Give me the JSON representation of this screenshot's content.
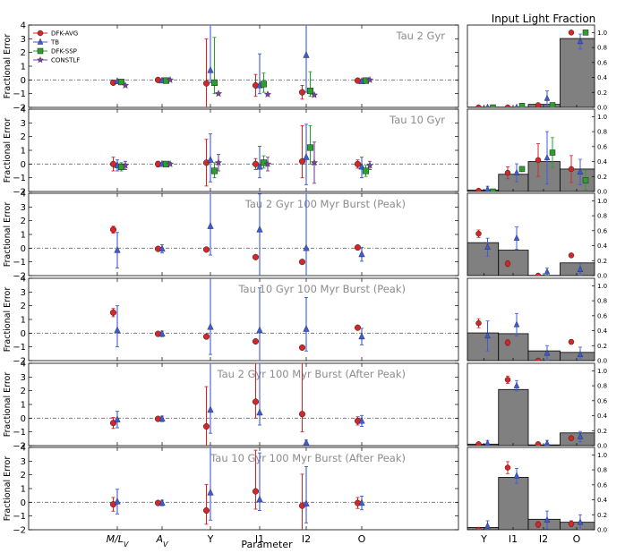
{
  "figure": {
    "right_title": "Input Light Fraction",
    "xlabel": "Parameter",
    "ylabel": "Fractional Error",
    "left_ticks": [
      "M/L_V",
      "A_V",
      "Y",
      "I1",
      "I2",
      "O"
    ],
    "right_ticks": [
      "Y",
      "I1",
      "I2",
      "O"
    ],
    "left_yticks": [
      "4",
      "3",
      "2",
      "1",
      "0",
      "−1",
      "−2"
    ],
    "right_yticks": [
      "1.0",
      "0.8",
      "0.6",
      "0.4",
      "0.2",
      "0.0"
    ],
    "legend": [
      {
        "label": "DFK-AVG",
        "color": "#d62728",
        "marker": "circle"
      },
      {
        "label": "TB",
        "color": "#3b5bdb",
        "marker": "triangle-up"
      },
      {
        "label": "DFK-SSP",
        "color": "#2ca02c",
        "marker": "square"
      },
      {
        "label": "CONSTLF",
        "color": "#7a3fa0",
        "marker": "star"
      }
    ]
  },
  "chart_data": [
    {
      "type": "errorbar",
      "title": "Tau 2 Gyr",
      "categories": [
        "M/L_V",
        "A_V",
        "Y",
        "I1",
        "I2",
        "O"
      ],
      "ylim": [
        -2,
        4
      ],
      "series": [
        {
          "name": "DFK-AVG",
          "values": [
            -0.2,
            0.0,
            -0.25,
            -0.4,
            -0.9,
            -0.05
          ],
          "err_lo": [
            0.05,
            0.05,
            3.25,
            0.8,
            0.5,
            0.05
          ],
          "err_hi": [
            0.05,
            0.05,
            3.25,
            0.8,
            0.5,
            0.05
          ]
        },
        {
          "name": "TB",
          "values": [
            -0.1,
            -0.05,
            0.7,
            -0.4,
            1.8,
            -0.1
          ],
          "err_lo": [
            0.05,
            0.05,
            0.9,
            0.6,
            2.7,
            0.05
          ],
          "err_hi": [
            0.05,
            0.05,
            3.3,
            2.3,
            2.2,
            0.05
          ]
        },
        {
          "name": "DFK-SSP",
          "values": [
            -0.15,
            -0.05,
            -0.2,
            -0.3,
            -0.8,
            -0.05
          ],
          "err_lo": [
            0.05,
            0.05,
            0.8,
            0.6,
            0.4,
            0.05
          ],
          "err_hi": [
            0.05,
            0.05,
            3.3,
            0.8,
            1.4,
            0.05
          ]
        },
        {
          "name": "CONSTLF",
          "values": [
            -0.4,
            0.0,
            -1.0,
            -1.05,
            -1.1,
            0.0
          ],
          "err_lo": [
            0.05,
            0.05,
            0.05,
            0.05,
            0.05,
            0.05
          ],
          "err_hi": [
            0.05,
            0.05,
            0.05,
            0.05,
            0.05,
            0.05
          ]
        }
      ],
      "fraction": {
        "bars": [
          0.0,
          0.0,
          0.04,
          0.92
        ],
        "series": [
          {
            "name": "DFK-AVG",
            "values": [
              0.0,
              0.0,
              0.03,
              1.0
            ],
            "err": [
              0.005,
              0.005,
              0.01,
              0.01
            ]
          },
          {
            "name": "TB",
            "values": [
              0.0,
              0.0,
              0.12,
              0.88
            ],
            "err": [
              0.005,
              0.005,
              0.1,
              0.1
            ]
          },
          {
            "name": "DFK-SSP",
            "values": [
              0.0,
              0.02,
              0.03,
              1.0
            ],
            "err": [
              0.005,
              0.01,
              0.03,
              0.01
            ]
          }
        ]
      }
    },
    {
      "type": "errorbar",
      "title": "Tau 10 Gyr",
      "categories": [
        "M/L_V",
        "A_V",
        "Y",
        "I1",
        "I2",
        "O"
      ],
      "ylim": [
        -2,
        4
      ],
      "series": [
        {
          "name": "DFK-AVG",
          "values": [
            0.0,
            0.0,
            0.1,
            0.0,
            0.2,
            0.0
          ],
          "err_lo": [
            0.5,
            0.2,
            1.7,
            0.4,
            1.2,
            0.3
          ],
          "err_hi": [
            0.5,
            0.2,
            1.7,
            0.4,
            2.6,
            0.3
          ]
        },
        {
          "name": "TB",
          "values": [
            -0.1,
            0.0,
            0.3,
            -0.2,
            0.5,
            -0.2
          ],
          "err_lo": [
            0.4,
            0.1,
            1.6,
            0.8,
            2.0,
            0.8
          ],
          "err_hi": [
            0.4,
            0.1,
            1.9,
            1.5,
            2.4,
            0.7
          ]
        },
        {
          "name": "DFK-SSP",
          "values": [
            -0.2,
            0.0,
            -0.5,
            0.1,
            1.2,
            -0.5
          ],
          "err_lo": [
            0.3,
            0.1,
            0.5,
            0.4,
            1.2,
            0.4
          ],
          "err_hi": [
            0.3,
            0.1,
            0.6,
            0.5,
            1.6,
            0.4
          ]
        },
        {
          "name": "CONSTLF",
          "values": [
            -0.1,
            0.0,
            0.1,
            0.0,
            0.1,
            -0.1
          ],
          "err_lo": [
            0.3,
            0.1,
            0.6,
            0.5,
            1.5,
            0.3
          ],
          "err_hi": [
            0.3,
            0.1,
            0.6,
            0.5,
            1.5,
            0.3
          ]
        }
      ],
      "fraction": {
        "bars": [
          0.02,
          0.23,
          0.4,
          0.3
        ],
        "series": [
          {
            "name": "DFK-AVG",
            "values": [
              0.01,
              0.25,
              0.42,
              0.3
            ],
            "err": [
              0.01,
              0.08,
              0.22,
              0.18
            ]
          },
          {
            "name": "TB",
            "values": [
              0.03,
              0.25,
              0.45,
              0.26
            ],
            "err": [
              0.04,
              0.12,
              0.35,
              0.17
            ]
          },
          {
            "name": "DFK-SSP",
            "values": [
              0.0,
              0.3,
              0.52,
              0.15
            ],
            "err": [
              0.01,
              0.03,
              0.2,
              0.13
            ]
          }
        ]
      }
    },
    {
      "type": "errorbar",
      "title": "Tau 2 Gyr 100 Myr Burst (Peak)",
      "categories": [
        "M/L_V",
        "A_V",
        "Y",
        "I1",
        "I2",
        "O"
      ],
      "ylim": [
        -2,
        4
      ],
      "series": [
        {
          "name": "DFK-AVG",
          "values": [
            1.35,
            -0.05,
            -0.1,
            -0.65,
            -1.0,
            0.05
          ],
          "err_lo": [
            0.25,
            0.15,
            0.1,
            0.15,
            0.1,
            0.1
          ],
          "err_hi": [
            0.25,
            0.15,
            0.1,
            0.15,
            0.1,
            0.1
          ]
        },
        {
          "name": "TB",
          "values": [
            -0.15,
            -0.05,
            1.6,
            1.35,
            0.0,
            -0.45
          ],
          "err_lo": [
            1.3,
            0.3,
            2.1,
            3.4,
            2.0,
            0.5
          ],
          "err_hi": [
            1.3,
            0.3,
            2.4,
            2.6,
            4.0,
            0.5
          ]
        }
      ],
      "fraction": {
        "bars": [
          0.44,
          0.34,
          0.0,
          0.17
        ],
        "series": [
          {
            "name": "DFK-AVG",
            "values": [
              0.56,
              0.16,
              0.0,
              0.27
            ],
            "err": [
              0.05,
              0.04,
              0.005,
              0.02
            ]
          },
          {
            "name": "TB",
            "values": [
              0.38,
              0.5,
              0.05,
              0.08
            ],
            "err": [
              0.12,
              0.15,
              0.05,
              0.08
            ]
          }
        ]
      }
    },
    {
      "type": "errorbar",
      "title": "Tau 10 Gyr 100 Myr Burst (Peak)",
      "categories": [
        "M/L_V",
        "A_V",
        "Y",
        "I1",
        "I2",
        "O"
      ],
      "ylim": [
        -2,
        4
      ],
      "series": [
        {
          "name": "DFK-AVG",
          "values": [
            1.5,
            -0.05,
            -0.25,
            -0.6,
            -1.05,
            0.4
          ],
          "err_lo": [
            0.3,
            0.15,
            0.15,
            0.15,
            0.1,
            0.1
          ],
          "err_hi": [
            0.3,
            0.15,
            0.15,
            0.15,
            0.1,
            0.1
          ]
        },
        {
          "name": "TB",
          "values": [
            0.2,
            -0.05,
            0.45,
            0.2,
            0.3,
            -0.25
          ],
          "err_lo": [
            1.2,
            0.2,
            2.0,
            3.0,
            1.6,
            0.6
          ],
          "err_hi": [
            1.8,
            0.2,
            3.6,
            3.1,
            2.3,
            0.6
          ]
        }
      ],
      "fraction": {
        "bars": [
          0.37,
          0.36,
          0.13,
          0.11
        ],
        "series": [
          {
            "name": "DFK-AVG",
            "values": [
              0.5,
              0.24,
              0.0,
              0.25
            ],
            "err": [
              0.06,
              0.04,
              0.01,
              0.03
            ]
          },
          {
            "name": "TB",
            "values": [
              0.33,
              0.48,
              0.1,
              0.08
            ],
            "err": [
              0.2,
              0.15,
              0.1,
              0.1
            ]
          }
        ]
      }
    },
    {
      "type": "errorbar",
      "title": "Tau 2 Gyr 100 Myr Burst (After Peak)",
      "categories": [
        "M/L_V",
        "A_V",
        "Y",
        "I1",
        "I2",
        "O"
      ],
      "ylim": [
        -2,
        4
      ],
      "series": [
        {
          "name": "DFK-AVG",
          "values": [
            -0.35,
            -0.05,
            -0.6,
            1.2,
            0.3,
            -0.2
          ],
          "err_lo": [
            0.4,
            0.15,
            1.8,
            1.2,
            1.3,
            0.3
          ],
          "err_hi": [
            0.4,
            0.15,
            2.9,
            2.8,
            3.7,
            0.3
          ]
        },
        {
          "name": "TB",
          "values": [
            -0.1,
            -0.05,
            0.6,
            0.4,
            -1.8,
            -0.2
          ],
          "err_lo": [
            0.6,
            0.2,
            1.7,
            0.9,
            0.2,
            0.4
          ],
          "err_hi": [
            0.6,
            0.2,
            3.4,
            3.6,
            0.2,
            0.4
          ]
        }
      ],
      "fraction": {
        "bars": [
          0.02,
          0.75,
          0.01,
          0.17
        ],
        "series": [
          {
            "name": "DFK-AVG",
            "values": [
              0.02,
              0.88,
              0.02,
              0.1
            ],
            "err": [
              0.01,
              0.05,
              0.01,
              0.02
            ]
          },
          {
            "name": "TB",
            "values": [
              0.03,
              0.8,
              0.03,
              0.12
            ],
            "err": [
              0.04,
              0.07,
              0.04,
              0.07
            ]
          }
        ]
      }
    },
    {
      "type": "errorbar",
      "title": "Tau 10 Gyr 100 Myr Burst (After Peak)",
      "categories": [
        "M/L_V",
        "A_V",
        "Y",
        "I1",
        "I2",
        "O"
      ],
      "ylim": [
        -2,
        4
      ],
      "series": [
        {
          "name": "DFK-AVG",
          "values": [
            -0.15,
            -0.05,
            -0.6,
            0.8,
            -0.25,
            -0.05
          ],
          "err_lo": [
            0.5,
            0.15,
            1.0,
            1.3,
            1.8,
            0.4
          ],
          "err_hi": [
            0.5,
            0.15,
            1.9,
            3.0,
            2.3,
            0.4
          ]
        },
        {
          "name": "TB",
          "values": [
            0.05,
            -0.05,
            0.7,
            0.2,
            -0.1,
            -0.05
          ],
          "err_lo": [
            0.9,
            0.2,
            2.0,
            0.8,
            1.4,
            0.5
          ],
          "err_hi": [
            0.9,
            0.2,
            3.3,
            3.4,
            2.7,
            0.5
          ]
        }
      ],
      "fraction": {
        "bars": [
          0.03,
          0.7,
          0.14,
          0.1
        ],
        "series": [
          {
            "name": "DFK-AVG",
            "values": [
              0.0,
              0.83,
              0.07,
              0.08
            ],
            "err": [
              0.01,
              0.08,
              0.04,
              0.04
            ]
          },
          {
            "name": "TB",
            "values": [
              0.05,
              0.72,
              0.13,
              0.1
            ],
            "err": [
              0.07,
              0.1,
              0.12,
              0.1
            ]
          }
        ]
      }
    }
  ]
}
